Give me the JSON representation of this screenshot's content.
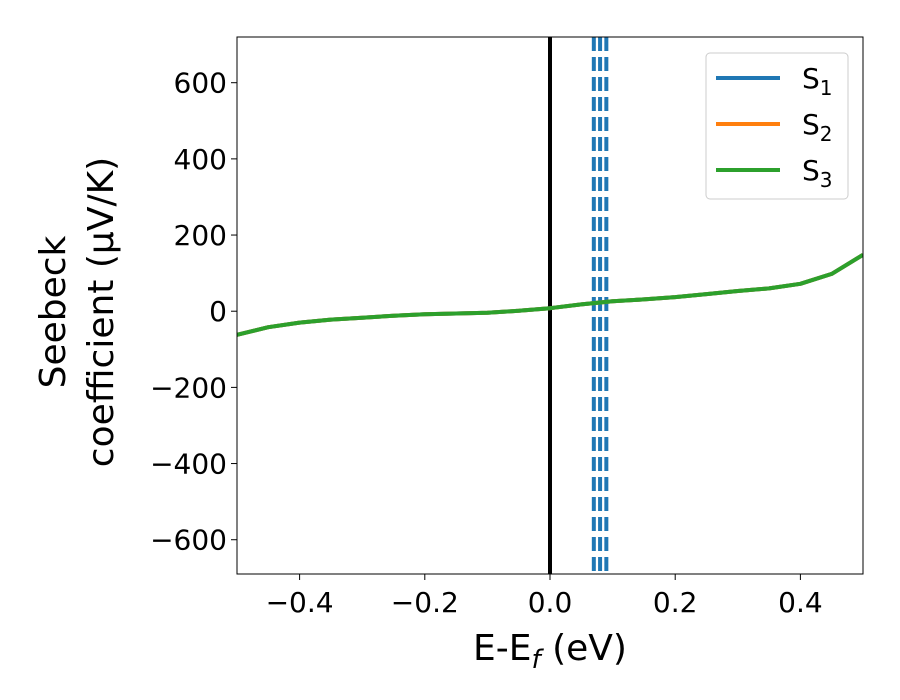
{
  "chart_data": {
    "type": "line",
    "xlabel": "E-E",
    "xlabel_sub": "f",
    "xlabel_unit": " (eV)",
    "ylabel_line1": "Seebeck",
    "ylabel_line2": "coefficient  (μV/K)",
    "xlim": [
      -0.5,
      0.5
    ],
    "ylim": [
      -690,
      720
    ],
    "xticks": [
      -0.4,
      -0.2,
      0.0,
      0.2,
      0.4
    ],
    "xtick_labels": [
      "−0.4",
      "−0.2",
      "0.0",
      "0.2",
      "0.4"
    ],
    "yticks": [
      -600,
      -400,
      -200,
      0,
      200,
      400,
      600
    ],
    "ytick_labels": [
      "−600",
      "−400",
      "−200",
      "0",
      "200",
      "400",
      "600"
    ],
    "legend_position": "top-right",
    "series": [
      {
        "name": "S",
        "sub": "1",
        "color": "#1f77b4",
        "x": [
          -0.5,
          -0.45,
          -0.4,
          -0.35,
          -0.3,
          -0.25,
          -0.2,
          -0.15,
          -0.1,
          -0.05,
          0.0,
          0.05,
          0.1,
          0.15,
          0.2,
          0.25,
          0.3,
          0.35,
          0.4,
          0.45,
          0.5
        ],
        "y": [
          -62,
          -42,
          -30,
          -22,
          -17,
          -12,
          -8,
          -6,
          -4,
          1,
          8,
          18,
          26,
          31,
          37,
          45,
          53,
          60,
          72,
          98,
          148
        ]
      },
      {
        "name": "S",
        "sub": "2",
        "color": "#ff7f0e",
        "x": [
          -0.5,
          -0.45,
          -0.4,
          -0.35,
          -0.3,
          -0.25,
          -0.2,
          -0.15,
          -0.1,
          -0.05,
          0.0,
          0.05,
          0.1,
          0.15,
          0.2,
          0.25,
          0.3,
          0.35,
          0.4,
          0.45,
          0.5
        ],
        "y": [
          -62,
          -42,
          -30,
          -22,
          -17,
          -12,
          -8,
          -6,
          -4,
          1,
          8,
          18,
          26,
          31,
          37,
          45,
          53,
          60,
          72,
          98,
          148
        ]
      },
      {
        "name": "S",
        "sub": "3",
        "color": "#2ca02c",
        "x": [
          -0.5,
          -0.45,
          -0.4,
          -0.35,
          -0.3,
          -0.25,
          -0.2,
          -0.15,
          -0.1,
          -0.05,
          0.0,
          0.05,
          0.1,
          0.15,
          0.2,
          0.25,
          0.3,
          0.35,
          0.4,
          0.45,
          0.5
        ],
        "y": [
          -62,
          -42,
          -30,
          -22,
          -17,
          -12,
          -8,
          -6,
          -4,
          1,
          8,
          18,
          26,
          31,
          37,
          45,
          53,
          60,
          72,
          98,
          148
        ]
      }
    ],
    "vlines": [
      {
        "x": 0.0,
        "color": "#000000",
        "style": "solid"
      },
      {
        "x": 0.07,
        "color": "#1f77b4",
        "style": "dashed"
      },
      {
        "x": 0.08,
        "color": "#1f77b4",
        "style": "dashed"
      },
      {
        "x": 0.09,
        "color": "#1f77b4",
        "style": "dashed"
      }
    ]
  }
}
